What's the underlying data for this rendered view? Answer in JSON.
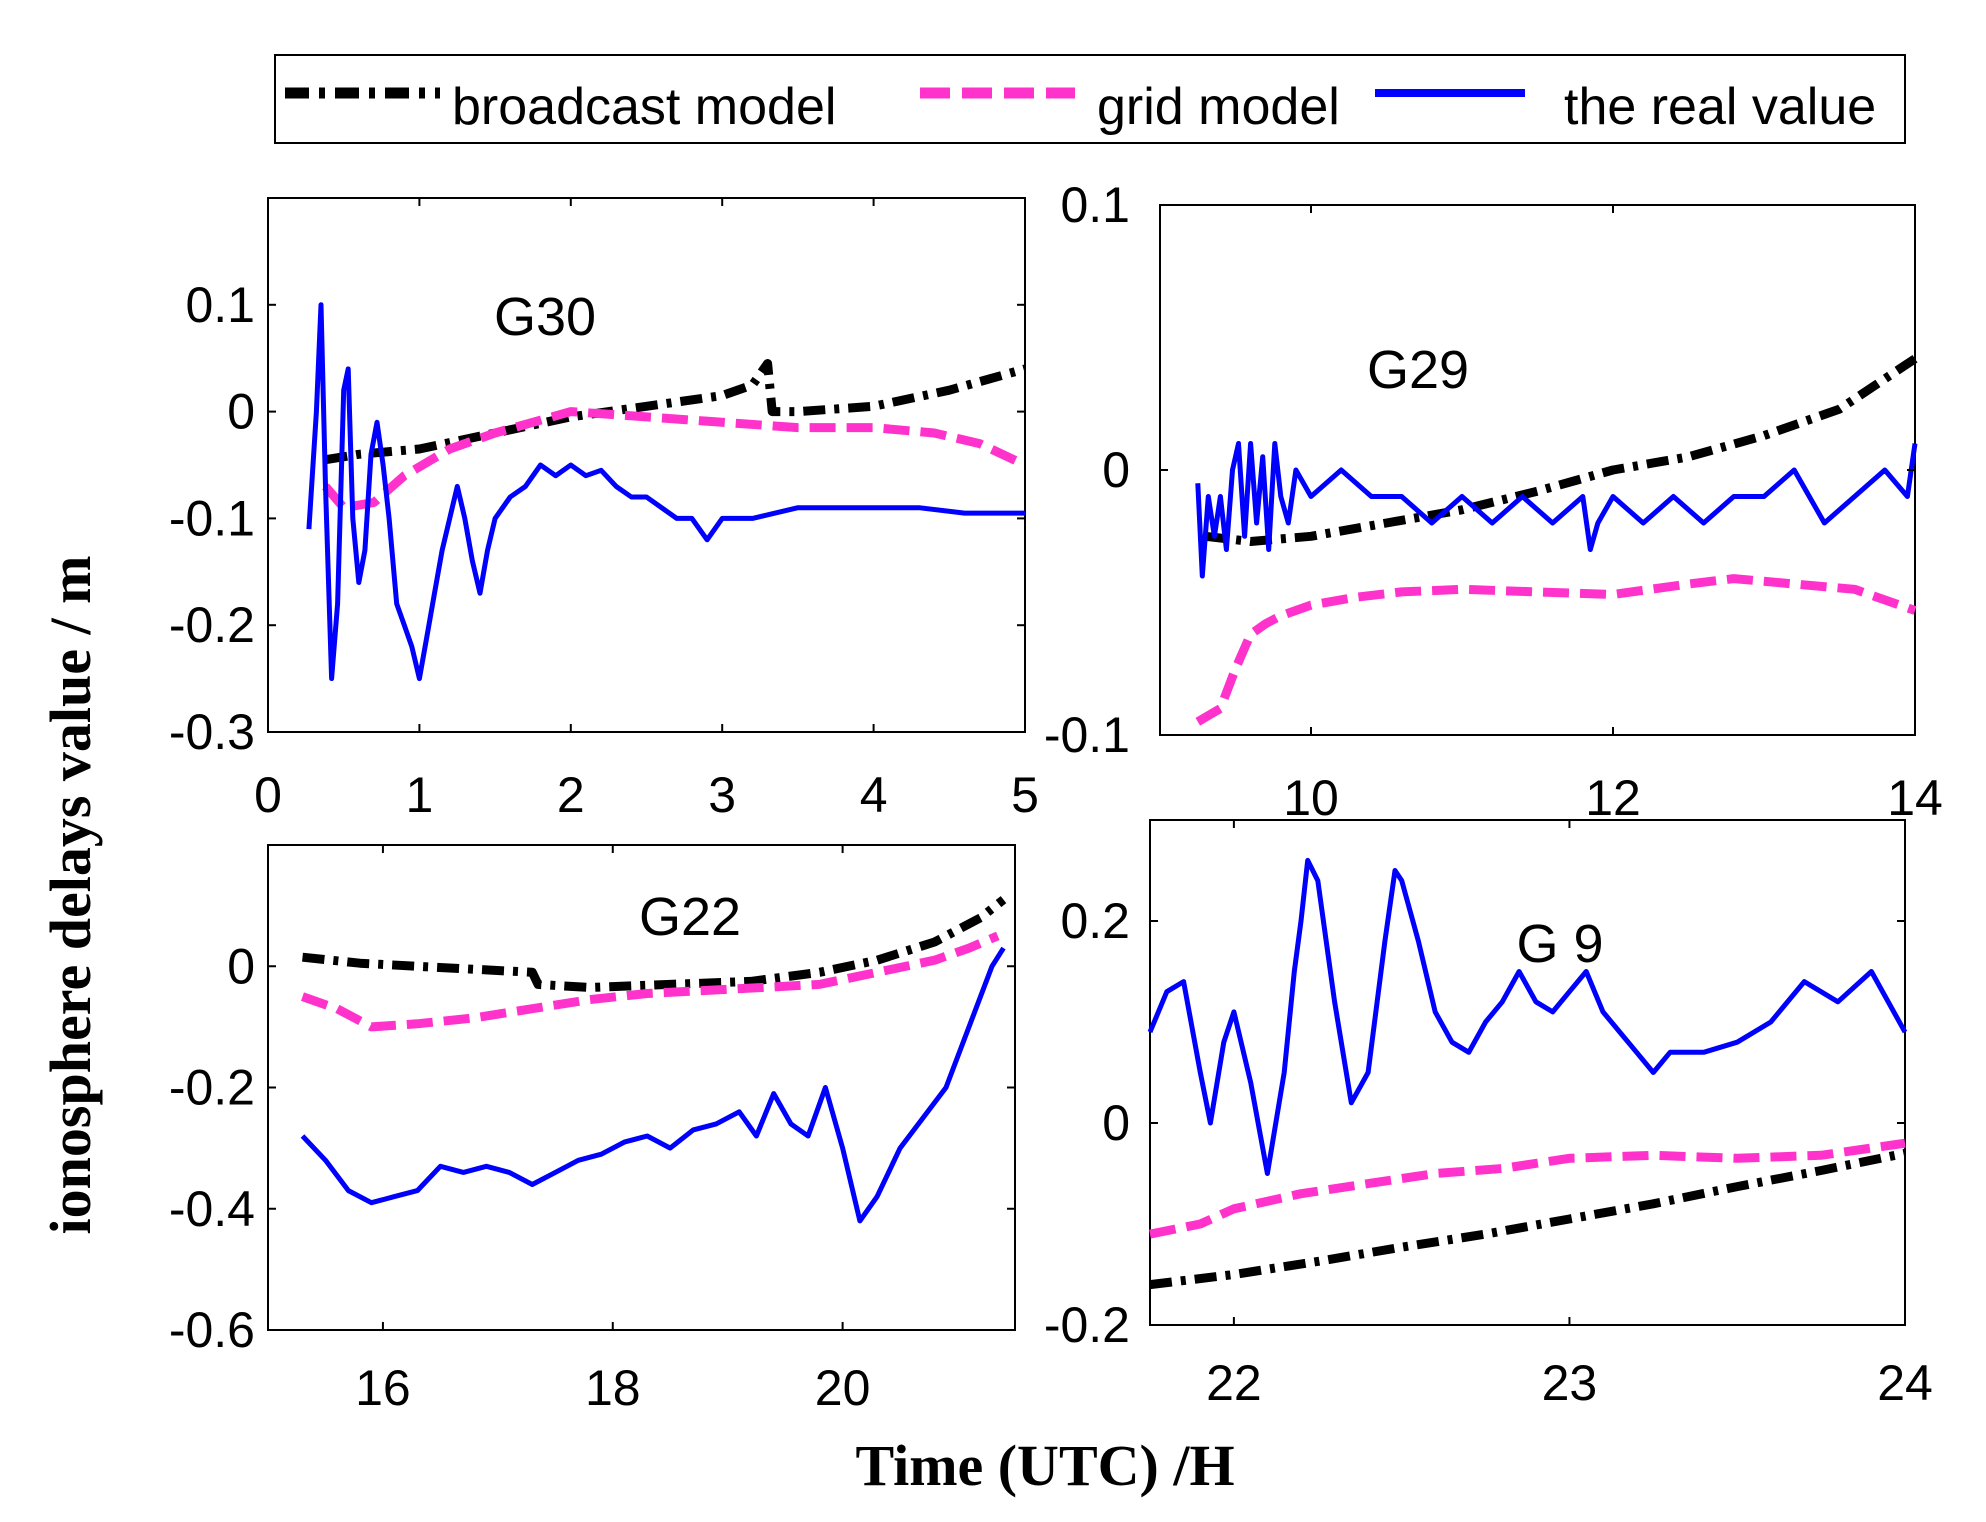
{
  "figure": {
    "ylabel": "ionosphere delays value / m",
    "xlabel": "Time (UTC) /H"
  },
  "legend": {
    "items": [
      {
        "label": "broadcast model",
        "color": "#000000",
        "style": "dash-dot"
      },
      {
        "label": "grid model",
        "color": "#ff33cc",
        "style": "dashed"
      },
      {
        "label": "the real value",
        "color": "#0000ff",
        "style": "solid"
      }
    ]
  },
  "chart_data": [
    {
      "type": "line",
      "title": "G30",
      "xlim": [
        0,
        5
      ],
      "ylim": [
        -0.3,
        0.2
      ],
      "xticks": [
        "0",
        "1",
        "2",
        "3",
        "4",
        "5"
      ],
      "xtick_values": [
        0,
        1,
        2,
        3,
        4,
        5
      ],
      "yticks": [
        "0.1",
        "0",
        "-0.1",
        "-0.2",
        "-0.3"
      ],
      "ytick_values": [
        0.1,
        0,
        -0.1,
        -0.2,
        -0.3
      ],
      "series": [
        {
          "name": "broadcast model",
          "color": "#000000",
          "style": "dash-dot",
          "x": [
            0.38,
            0.6,
            1.0,
            1.5,
            2.0,
            2.5,
            3.0,
            3.2,
            3.3,
            3.33,
            3.5,
            4.0,
            4.5,
            5.0
          ],
          "y": [
            -0.045,
            -0.04,
            -0.035,
            -0.02,
            -0.005,
            0.005,
            0.015,
            0.025,
            0.045,
            0.0,
            0.0,
            0.005,
            0.02,
            0.04
          ]
        },
        {
          "name": "grid model",
          "color": "#ff33cc",
          "style": "dashed",
          "x": [
            0.38,
            0.5,
            0.7,
            0.9,
            1.2,
            1.5,
            2.0,
            2.5,
            3.0,
            3.5,
            4.0,
            4.4,
            4.7,
            5.0
          ],
          "y": [
            -0.07,
            -0.09,
            -0.085,
            -0.06,
            -0.035,
            -0.02,
            0.0,
            -0.005,
            -0.01,
            -0.015,
            -0.015,
            -0.02,
            -0.03,
            -0.05
          ]
        },
        {
          "name": "the real value",
          "color": "#0000ff",
          "style": "solid",
          "x": [
            0.27,
            0.32,
            0.35,
            0.38,
            0.42,
            0.46,
            0.5,
            0.53,
            0.56,
            0.6,
            0.64,
            0.68,
            0.72,
            0.76,
            0.8,
            0.85,
            0.9,
            0.95,
            1.0,
            1.05,
            1.1,
            1.15,
            1.2,
            1.25,
            1.3,
            1.35,
            1.4,
            1.45,
            1.5,
            1.6,
            1.7,
            1.8,
            1.9,
            2.0,
            2.1,
            2.2,
            2.3,
            2.4,
            2.5,
            2.6,
            2.7,
            2.8,
            2.9,
            3.0,
            3.2,
            3.5,
            3.8,
            4.0,
            4.3,
            4.6,
            5.0
          ],
          "y": [
            -0.11,
            0.0,
            0.1,
            -0.07,
            -0.25,
            -0.18,
            0.02,
            0.04,
            -0.1,
            -0.16,
            -0.13,
            -0.04,
            -0.01,
            -0.05,
            -0.1,
            -0.18,
            -0.2,
            -0.22,
            -0.25,
            -0.21,
            -0.17,
            -0.13,
            -0.1,
            -0.07,
            -0.1,
            -0.14,
            -0.17,
            -0.13,
            -0.1,
            -0.08,
            -0.07,
            -0.05,
            -0.06,
            -0.05,
            -0.06,
            -0.055,
            -0.07,
            -0.08,
            -0.08,
            -0.09,
            -0.1,
            -0.1,
            -0.12,
            -0.1,
            -0.1,
            -0.09,
            -0.09,
            -0.09,
            -0.09,
            -0.095,
            -0.095
          ]
        }
      ]
    },
    {
      "type": "line",
      "title": "G29",
      "xlim": [
        9.0,
        14.0
      ],
      "ylim": [
        -0.1,
        0.1
      ],
      "xticks": [
        "10",
        "12",
        "14"
      ],
      "xtick_values": [
        10,
        12,
        14
      ],
      "yticks": [
        "0.1",
        "0",
        "-0.1"
      ],
      "ytick_values": [
        0.1,
        0,
        -0.1
      ],
      "series": [
        {
          "name": "broadcast model",
          "color": "#000000",
          "style": "dash-dot",
          "x": [
            9.3,
            9.6,
            10.0,
            10.5,
            11.0,
            11.5,
            12.0,
            12.5,
            13.0,
            13.5,
            14.0
          ],
          "y": [
            -0.025,
            -0.027,
            -0.025,
            -0.02,
            -0.015,
            -0.008,
            0.0,
            0.005,
            0.013,
            0.023,
            0.042
          ]
        },
        {
          "name": "grid model",
          "color": "#ff33cc",
          "style": "dashed",
          "x": [
            9.25,
            9.4,
            9.5,
            9.6,
            9.7,
            9.8,
            10.0,
            10.3,
            10.6,
            11.0,
            11.5,
            12.0,
            12.5,
            12.8,
            13.2,
            13.6,
            14.0
          ],
          "y": [
            -0.095,
            -0.09,
            -0.075,
            -0.062,
            -0.058,
            -0.055,
            -0.051,
            -0.048,
            -0.046,
            -0.045,
            -0.046,
            -0.047,
            -0.043,
            -0.041,
            -0.043,
            -0.045,
            -0.053
          ]
        },
        {
          "name": "the real value",
          "color": "#0000ff",
          "style": "solid",
          "x": [
            9.25,
            9.28,
            9.32,
            9.36,
            9.4,
            9.44,
            9.48,
            9.52,
            9.56,
            9.6,
            9.64,
            9.68,
            9.72,
            9.76,
            9.8,
            9.85,
            9.9,
            10.0,
            10.2,
            10.4,
            10.6,
            10.8,
            11.0,
            11.2,
            11.4,
            11.6,
            11.8,
            11.85,
            11.9,
            12.0,
            12.2,
            12.4,
            12.6,
            12.8,
            13.0,
            13.2,
            13.4,
            13.6,
            13.8,
            13.95,
            14.0
          ],
          "y": [
            -0.005,
            -0.04,
            -0.01,
            -0.025,
            -0.01,
            -0.03,
            0.0,
            0.01,
            -0.025,
            0.01,
            -0.02,
            0.005,
            -0.03,
            0.01,
            -0.01,
            -0.02,
            0.0,
            -0.01,
            0.0,
            -0.01,
            -0.01,
            -0.02,
            -0.01,
            -0.02,
            -0.01,
            -0.02,
            -0.01,
            -0.03,
            -0.02,
            -0.01,
            -0.02,
            -0.01,
            -0.02,
            -0.01,
            -0.01,
            0.0,
            -0.02,
            -0.01,
            0.0,
            -0.01,
            0.01
          ]
        }
      ]
    },
    {
      "type": "line",
      "title": "G22",
      "xlim": [
        15.0,
        21.5
      ],
      "ylim": [
        -0.6,
        0.2
      ],
      "xticks": [
        "16",
        "18",
        "20"
      ],
      "xtick_values": [
        16,
        18,
        20
      ],
      "yticks": [
        "0",
        "-0.2",
        "-0.4",
        "-0.6"
      ],
      "ytick_values": [
        0,
        -0.2,
        -0.4,
        -0.6
      ],
      "series": [
        {
          "name": "broadcast model",
          "color": "#000000",
          "style": "dash-dot",
          "x": [
            15.3,
            15.8,
            16.3,
            16.8,
            17.3,
            17.35,
            17.8,
            18.5,
            19.2,
            19.8,
            20.3,
            20.8,
            21.2,
            21.4
          ],
          "y": [
            0.015,
            0.005,
            0.0,
            -0.005,
            -0.01,
            -0.03,
            -0.035,
            -0.03,
            -0.025,
            -0.01,
            0.01,
            0.04,
            0.08,
            0.11
          ]
        },
        {
          "name": "grid model",
          "color": "#ff33cc",
          "style": "dashed",
          "x": [
            15.3,
            15.6,
            15.9,
            16.3,
            16.8,
            17.3,
            17.8,
            18.3,
            18.8,
            19.3,
            19.8,
            20.3,
            20.8,
            21.1,
            21.35
          ],
          "y": [
            -0.05,
            -0.07,
            -0.1,
            -0.095,
            -0.085,
            -0.07,
            -0.055,
            -0.045,
            -0.04,
            -0.035,
            -0.03,
            -0.01,
            0.01,
            0.03,
            0.05
          ]
        },
        {
          "name": "the real value",
          "color": "#0000ff",
          "style": "solid",
          "x": [
            15.3,
            15.5,
            15.7,
            15.9,
            16.1,
            16.3,
            16.5,
            16.7,
            16.9,
            17.1,
            17.3,
            17.5,
            17.7,
            17.9,
            18.1,
            18.3,
            18.5,
            18.7,
            18.9,
            19.1,
            19.25,
            19.4,
            19.55,
            19.7,
            19.85,
            20.0,
            20.15,
            20.3,
            20.5,
            20.7,
            20.9,
            21.1,
            21.3,
            21.4
          ],
          "y": [
            -0.28,
            -0.32,
            -0.37,
            -0.39,
            -0.38,
            -0.37,
            -0.33,
            -0.34,
            -0.33,
            -0.34,
            -0.36,
            -0.34,
            -0.32,
            -0.31,
            -0.29,
            -0.28,
            -0.3,
            -0.27,
            -0.26,
            -0.24,
            -0.28,
            -0.21,
            -0.26,
            -0.28,
            -0.2,
            -0.3,
            -0.42,
            -0.38,
            -0.3,
            -0.25,
            -0.2,
            -0.1,
            0.0,
            0.03
          ]
        }
      ]
    },
    {
      "type": "line",
      "title": "G 9",
      "xlim": [
        21.75,
        24.0
      ],
      "ylim": [
        -0.2,
        0.3
      ],
      "xticks": [
        "22",
        "23",
        "24"
      ],
      "xtick_values": [
        22,
        23,
        24
      ],
      "yticks": [
        "0.2",
        "0",
        "-0.2"
      ],
      "ytick_values": [
        0.2,
        0,
        -0.2
      ],
      "series": [
        {
          "name": "broadcast model",
          "color": "#000000",
          "style": "dash-dot",
          "x": [
            21.75,
            22.0,
            22.25,
            22.5,
            22.75,
            23.0,
            23.25,
            23.5,
            23.75,
            24.0
          ],
          "y": [
            -0.16,
            -0.15,
            -0.137,
            -0.123,
            -0.11,
            -0.095,
            -0.08,
            -0.063,
            -0.047,
            -0.03
          ]
        },
        {
          "name": "grid model",
          "color": "#ff33cc",
          "style": "dashed",
          "x": [
            21.75,
            21.9,
            22.0,
            22.2,
            22.4,
            22.6,
            22.8,
            23.0,
            23.25,
            23.5,
            23.75,
            24.0
          ],
          "y": [
            -0.11,
            -0.1,
            -0.085,
            -0.07,
            -0.06,
            -0.05,
            -0.045,
            -0.035,
            -0.032,
            -0.035,
            -0.032,
            -0.02
          ]
        },
        {
          "name": "the real value",
          "color": "#0000ff",
          "style": "solid",
          "x": [
            21.75,
            21.8,
            21.85,
            21.9,
            21.93,
            21.97,
            22.0,
            22.05,
            22.1,
            22.15,
            22.18,
            22.2,
            22.22,
            22.25,
            22.3,
            22.35,
            22.4,
            22.45,
            22.48,
            22.5,
            22.55,
            22.6,
            22.65,
            22.7,
            22.75,
            22.8,
            22.85,
            22.9,
            22.95,
            23.0,
            23.05,
            23.1,
            23.15,
            23.2,
            23.25,
            23.3,
            23.4,
            23.5,
            23.6,
            23.7,
            23.8,
            23.9,
            24.0
          ],
          "y": [
            0.09,
            0.13,
            0.14,
            0.05,
            0.0,
            0.08,
            0.11,
            0.04,
            -0.05,
            0.05,
            0.15,
            0.2,
            0.26,
            0.24,
            0.12,
            0.02,
            0.05,
            0.18,
            0.25,
            0.24,
            0.18,
            0.11,
            0.08,
            0.07,
            0.1,
            0.12,
            0.15,
            0.12,
            0.11,
            0.13,
            0.15,
            0.11,
            0.09,
            0.07,
            0.05,
            0.07,
            0.07,
            0.08,
            0.1,
            0.14,
            0.12,
            0.15,
            0.09
          ]
        }
      ]
    }
  ]
}
